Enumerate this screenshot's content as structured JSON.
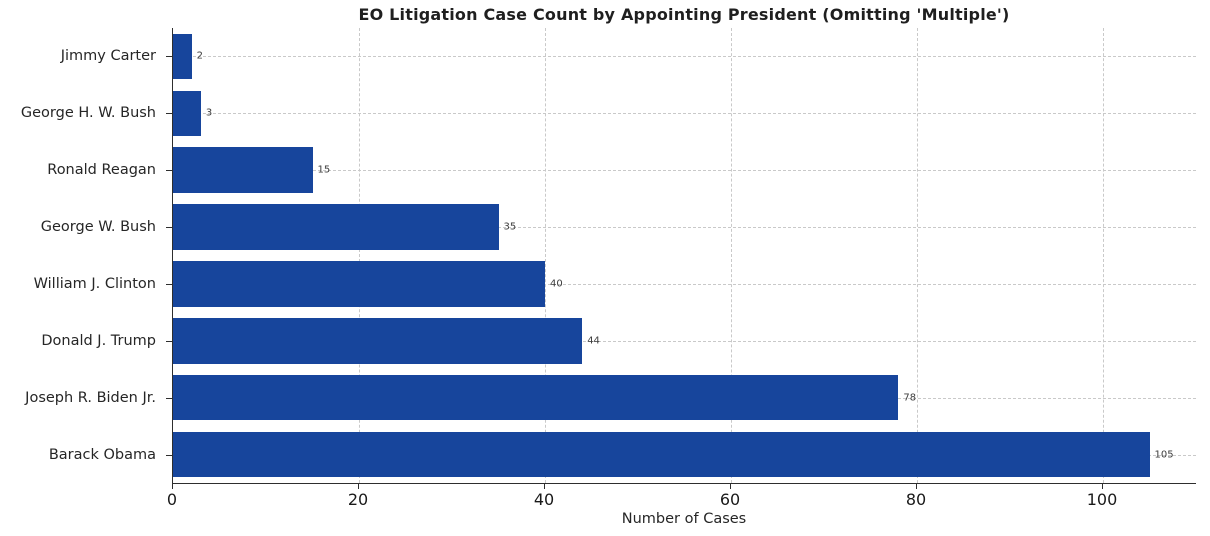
{
  "chart_data": {
    "type": "bar",
    "orientation": "horizontal",
    "title": "EO Litigation Case Count by Appointing President (Omitting 'Multiple')",
    "categories": [
      "Jimmy Carter",
      "George H. W. Bush",
      "Ronald Reagan",
      "George W. Bush",
      "William J. Clinton",
      "Donald J. Trump",
      "Joseph R. Biden Jr.",
      "Barack Obama"
    ],
    "values": [
      2,
      3,
      15,
      35,
      40,
      44,
      78,
      105
    ],
    "xlabel": "Number of Cases",
    "ylabel": "",
    "xlim": [
      0,
      110
    ],
    "xticks": [
      0,
      20,
      40,
      60,
      80,
      100
    ],
    "grid": true,
    "legend": "none",
    "bar_color": "#17459c",
    "grid_color": "#c9c9c9",
    "value_label_color": "#3d3d3d",
    "bar_slot_fraction": 0.8
  }
}
